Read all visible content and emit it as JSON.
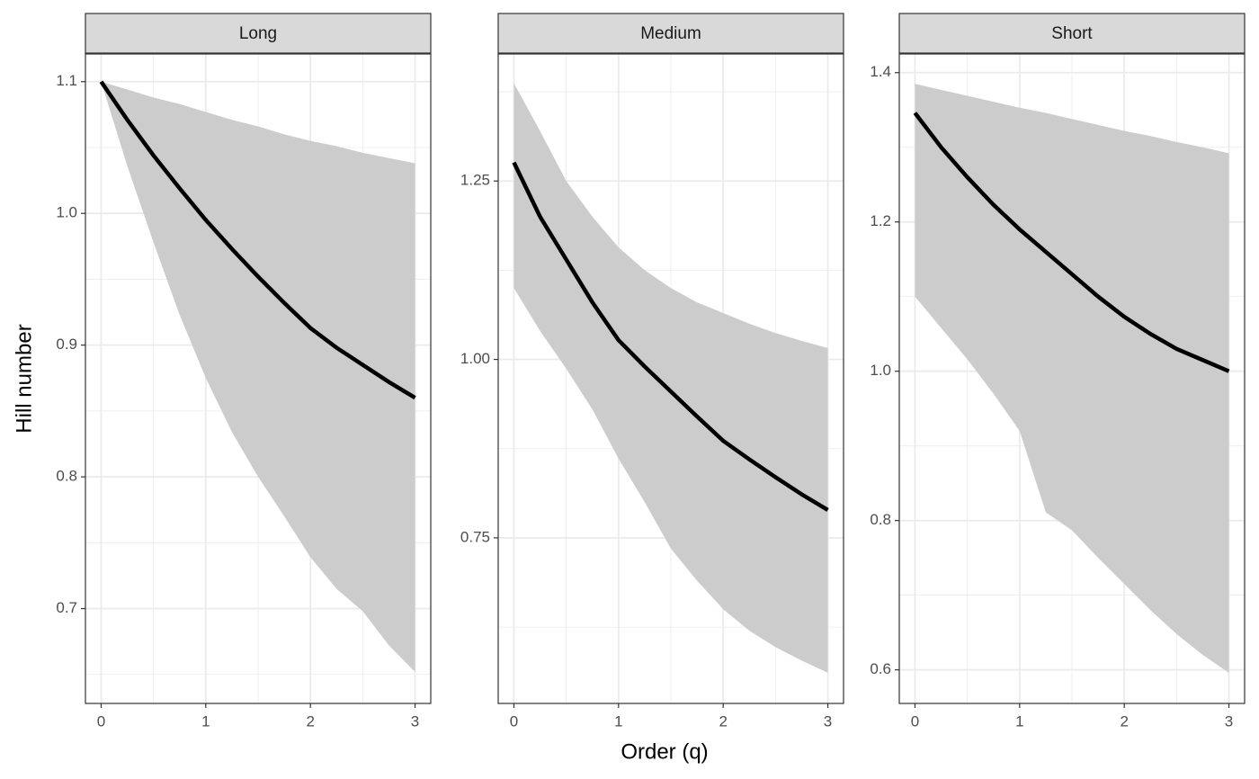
{
  "chart_data": {
    "type": "line",
    "xlabel": "Order (q)",
    "ylabel": "Hill number",
    "x": [
      0,
      0.25,
      0.5,
      0.75,
      1,
      1.25,
      1.5,
      1.75,
      2,
      2.25,
      2.5,
      2.75,
      3
    ],
    "xlim": [
      -0.15,
      3.15
    ],
    "xticks": [
      0,
      1,
      2,
      3
    ],
    "grid": true,
    "line_color": "#000000",
    "ribbon_color": "#cccccc",
    "panels": [
      {
        "title": "Long",
        "ylim": [
          0.628,
          1.121
        ],
        "yticks": [
          0.7,
          0.8,
          0.9,
          {
            "value": 1,
            "label": "1.0"
          },
          1.1
        ],
        "values": [
          1.1,
          1.071,
          1.044,
          1.019,
          0.995,
          0.973,
          0.952,
          0.932,
          0.913,
          0.898,
          0.885,
          0.872,
          0.86
        ],
        "upper": [
          1.1,
          1.094,
          1.088,
          1.083,
          1.077,
          1.071,
          1.066,
          1.06,
          1.055,
          1.051,
          1.046,
          1.042,
          1.038
        ],
        "lower": [
          1.1,
          1.036,
          0.978,
          0.923,
          0.875,
          0.834,
          0.8,
          0.77,
          0.739,
          0.715,
          0.698,
          0.672,
          0.652
        ]
      },
      {
        "title": "Medium",
        "ylim": [
          0.518,
          1.428
        ],
        "yticks": [
          0.75,
          {
            "value": 1,
            "label": "1.00"
          },
          1.25
        ],
        "values": [
          1.276,
          1.2,
          1.14,
          1.08,
          1.027,
          0.99,
          0.955,
          0.92,
          0.886,
          0.86,
          0.835,
          0.811,
          0.789
        ],
        "upper": [
          1.387,
          1.32,
          1.25,
          1.2,
          1.157,
          1.125,
          1.1,
          1.08,
          1.065,
          1.05,
          1.037,
          1.026,
          1.016
        ],
        "lower": [
          1.1,
          1.04,
          0.987,
          0.93,
          0.861,
          0.8,
          0.735,
          0.69,
          0.65,
          0.62,
          0.597,
          0.578,
          0.561
        ]
      },
      {
        "title": "Short",
        "ylim": [
          0.555,
          1.425
        ],
        "yticks": [
          0.6,
          0.8,
          {
            "value": 1,
            "label": "1.0"
          },
          1.2,
          1.4
        ],
        "values": [
          1.346,
          1.3,
          1.26,
          1.223,
          1.19,
          1.16,
          1.13,
          1.1,
          1.073,
          1.05,
          1.03,
          1.015,
          1.0
        ],
        "upper": [
          1.385,
          1.377,
          1.369,
          1.361,
          1.353,
          1.346,
          1.338,
          1.33,
          1.322,
          1.315,
          1.307,
          1.3,
          1.292
        ],
        "lower": [
          1.1,
          1.058,
          1.016,
          0.97,
          0.92,
          0.811,
          0.787,
          0.75,
          0.715,
          0.68,
          0.648,
          0.62,
          0.596
        ]
      }
    ]
  }
}
